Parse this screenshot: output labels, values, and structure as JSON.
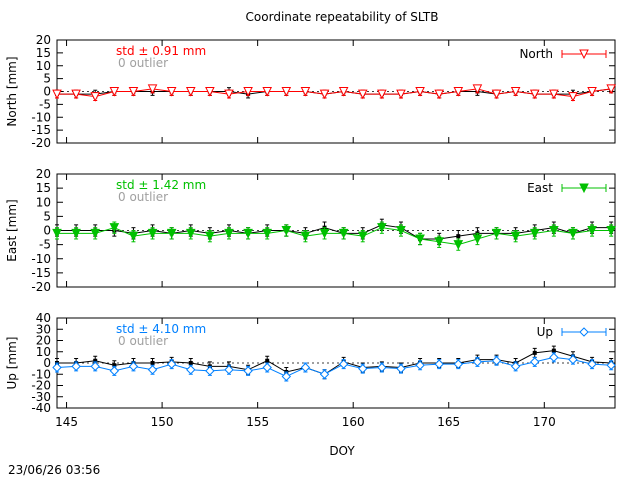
{
  "chart_data": {
    "type": "line",
    "title": "Coordinate repeatability of SLTB",
    "xlabel": "DOY",
    "timestamp": "23/06/26 03:56",
    "xlim": [
      144.5,
      173.7
    ],
    "xticks": [
      145,
      150,
      155,
      160,
      165,
      170
    ],
    "x": [
      144.5,
      145.5,
      146.5,
      147.5,
      148.5,
      149.5,
      150.5,
      151.5,
      152.5,
      153.5,
      154.5,
      155.5,
      156.5,
      157.5,
      158.5,
      159.5,
      160.5,
      161.5,
      162.5,
      163.5,
      164.5,
      165.5,
      166.5,
      167.5,
      168.5,
      169.5,
      170.5,
      171.5,
      172.5,
      173.5
    ],
    "panels": [
      {
        "ylabel": "North [mm]",
        "ylim": [
          -20,
          20
        ],
        "yticks": [
          -20,
          -15,
          -10,
          -5,
          0,
          5,
          10,
          15,
          20
        ],
        "std_text": "std ± 0.91 mm",
        "outlier_text": "0 outlier",
        "color": "#ff0000",
        "marker": "triangle-down-open",
        "series": [
          {
            "name": "North",
            "values": [
              -1,
              -1,
              -2,
              0,
              0,
              1,
              0,
              0,
              0,
              -1,
              0,
              0,
              0,
              0,
              -1,
              0,
              -1,
              -1,
              -1,
              0,
              -1,
              0,
              1,
              -1,
              0,
              -1,
              -1,
              -2,
              0,
              1
            ]
          },
          {
            "name": "",
            "values": [
              -1,
              -1,
              -1,
              0,
              0,
              0,
              0,
              0,
              0,
              0,
              -1,
              0,
              0,
              0,
              -1,
              0,
              -1,
              -1,
              -1,
              0,
              -1,
              0,
              0,
              -1,
              0,
              -1,
              -1,
              -1,
              0,
              1
            ]
          }
        ],
        "errors": 1.5
      },
      {
        "ylabel": "East [mm]",
        "ylim": [
          -20,
          20
        ],
        "yticks": [
          -20,
          -15,
          -10,
          -5,
          0,
          5,
          10,
          15,
          20
        ],
        "std_text": "std ± 1.42 mm",
        "outlier_text": "0 outlier",
        "color": "#00c000",
        "marker": "triangle-down-filled",
        "series": [
          {
            "name": "East",
            "values": [
              -1,
              -1,
              -1,
              1,
              -2,
              -1,
              -1,
              -1,
              -2,
              -1,
              -1,
              -1,
              0,
              -2,
              -1,
              -1,
              -2,
              1,
              0,
              -3,
              -4,
              -5,
              -3,
              -1,
              -2,
              -1,
              0,
              -1,
              0,
              0
            ]
          },
          {
            "name": "",
            "values": [
              0,
              0,
              0,
              0,
              -1,
              0,
              -1,
              0,
              -1,
              0,
              -1,
              0,
              0,
              -1,
              1,
              -1,
              -1,
              2,
              1,
              -3,
              -3,
              -2,
              -1,
              -1,
              -1,
              0,
              1,
              -1,
              1,
              1
            ]
          }
        ],
        "errors": 2
      },
      {
        "ylabel": "Up [mm]",
        "ylim": [
          -40,
          40
        ],
        "yticks": [
          -40,
          -30,
          -20,
          -10,
          0,
          10,
          20,
          30,
          40
        ],
        "std_text": "std ± 4.10 mm",
        "outlier_text": "0 outlier",
        "color": "#0080ff",
        "marker": "diamond-open",
        "series": [
          {
            "name": "Up",
            "values": [
              -4,
              -3,
              -3,
              -7,
              -3,
              -6,
              -1,
              -6,
              -7,
              -6,
              -7,
              -4,
              -12,
              -4,
              -10,
              -1,
              -5,
              -4,
              -5,
              -2,
              -1,
              -1,
              1,
              2,
              -3,
              1,
              5,
              3,
              -1,
              -2
            ]
          },
          {
            "name": "",
            "values": [
              0,
              0,
              2,
              -2,
              0,
              0,
              1,
              0,
              -3,
              -3,
              -6,
              2,
              -8,
              -4,
              -10,
              1,
              -4,
              -3,
              -4,
              0,
              0,
              0,
              3,
              3,
              0,
              9,
              11,
              6,
              1,
              0
            ]
          }
        ],
        "errors": 4
      }
    ]
  }
}
